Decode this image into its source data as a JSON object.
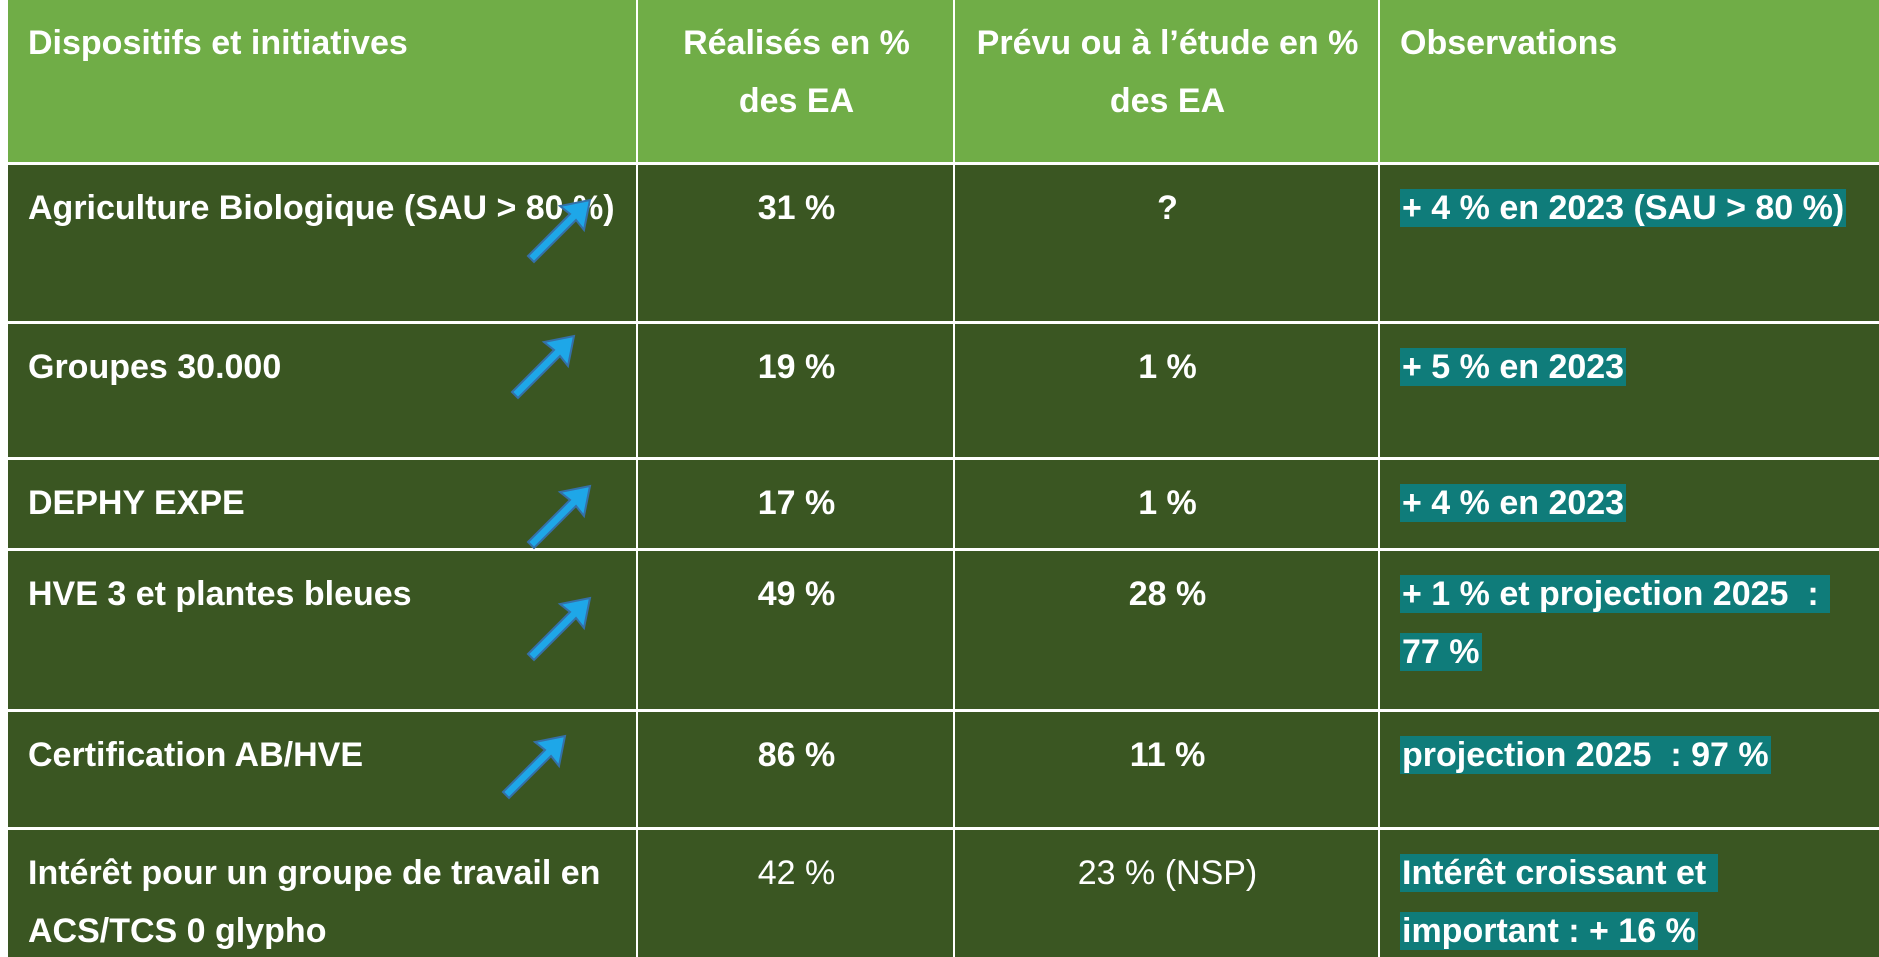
{
  "table": {
    "header": [
      "Dispositifs et initiatives",
      "Réalisés en % des EA",
      "Prévu ou à l’étude en % des EA",
      "Observations"
    ],
    "rows": [
      [
        "Agriculture Biologique (SAU > 80 %)",
        "31 %",
        "?",
        "+ 4 % en 2023 (SAU > 80 %)"
      ],
      [
        "Groupes 30.000",
        "19 %",
        "1 %",
        "+ 5 % en 2023"
      ],
      [
        "DEPHY EXPE",
        "17 %",
        "1 %",
        "+ 4 % en 2023"
      ],
      [
        "HVE 3 et plantes bleues",
        "49 %",
        "28 %",
        "+ 1 % et projection 2025  : 77 %"
      ],
      [
        "Certification AB/HVE",
        "86 %",
        "11 %",
        "projection 2025  : 97 %"
      ],
      [
        "Intérêt pour un groupe de travail en ACS/TCS 0 glypho",
        "42 %",
        "23 % (NSP)",
        "Intérêt croissant et important : + 16 %"
      ]
    ]
  }
}
